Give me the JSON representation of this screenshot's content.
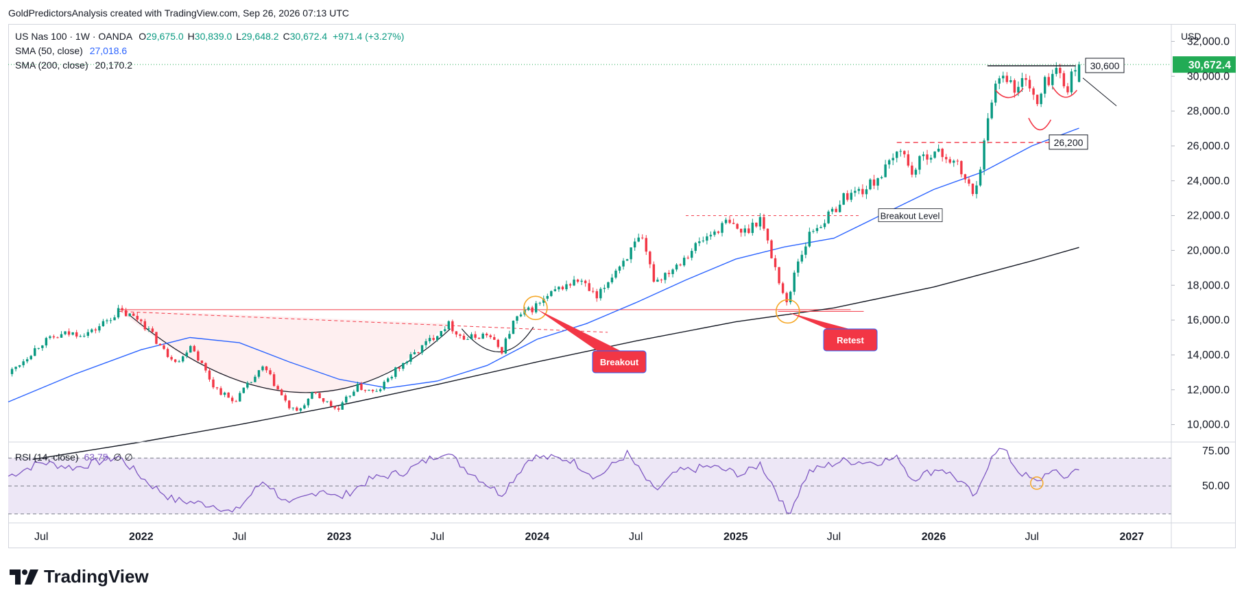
{
  "header": {
    "attribution": "GoldPredictorsAnalysis created with TradingView.com, Sep 26, 2026 07:13 UTC"
  },
  "legend": {
    "symbol": "US Nas 100 · 1W · OANDA",
    "ohlc": [
      {
        "k": "O",
        "v": "29,675.0"
      },
      {
        "k": "H",
        "v": "30,839.0"
      },
      {
        "k": "L",
        "v": "29,648.2"
      },
      {
        "k": "C",
        "v": "30,672.4"
      }
    ],
    "change": "+971.4 (+3.27%)",
    "sma50_label": "SMA (50, close)",
    "sma50_value": "27,018.6",
    "sma200_label": "SMA (200, close)",
    "sma200_value": "20,170.2"
  },
  "rsi_legend": {
    "label": "RSI (14, close)",
    "value": "63.75",
    "extra": "∅ ∅"
  },
  "currency": "USD",
  "price_label": "30,672.4",
  "logo_text": "TradingView",
  "colors": {
    "up": "#089981",
    "down": "#f23645",
    "sma50": "#2962ff",
    "sma200": "#131722",
    "rsi": "#7e57c2",
    "rsi_band": "#ede7f6",
    "annotation_red": "#f23645",
    "orange": "#f5a623",
    "price_tag": "#22ab55"
  },
  "chart_data": {
    "type": "candlestick",
    "timeframe": "1W",
    "x_range": [
      "2021-05-01",
      "2027-03-15"
    ],
    "y_range": [
      9000,
      33000
    ],
    "y_ticks": [
      {
        "value": 10000,
        "label": "10,000.0"
      },
      {
        "value": 12000,
        "label": "12,000.0"
      },
      {
        "value": 14000,
        "label": "14,000.0"
      },
      {
        "value": 16000,
        "label": "16,000.0"
      },
      {
        "value": 18000,
        "label": "18,000.0"
      },
      {
        "value": 20000,
        "label": "20,000.0"
      },
      {
        "value": 22000,
        "label": "22,000.0"
      },
      {
        "value": 24000,
        "label": "24,000.0"
      },
      {
        "value": 26000,
        "label": "26,000.0"
      },
      {
        "value": 28000,
        "label": "28,000.0"
      },
      {
        "value": 30000,
        "label": "30,000.0"
      },
      {
        "value": 32000,
        "label": "32,000.0"
      }
    ],
    "x_ticks": [
      {
        "date": "2021-07-01",
        "label": "Jul",
        "bold": false
      },
      {
        "date": "2022-01-01",
        "label": "2022",
        "bold": true
      },
      {
        "date": "2022-07-01",
        "label": "Jul",
        "bold": false
      },
      {
        "date": "2023-01-01",
        "label": "2023",
        "bold": true
      },
      {
        "date": "2023-07-01",
        "label": "Jul",
        "bold": false
      },
      {
        "date": "2024-01-01",
        "label": "2024",
        "bold": true
      },
      {
        "date": "2024-07-01",
        "label": "Jul",
        "bold": false
      },
      {
        "date": "2025-01-01",
        "label": "2025",
        "bold": true
      },
      {
        "date": "2025-07-01",
        "label": "Jul",
        "bold": false
      },
      {
        "date": "2026-01-01",
        "label": "2026",
        "bold": true
      },
      {
        "date": "2026-07-01",
        "label": "Jul",
        "bold": false
      },
      {
        "date": "2027-01-01",
        "label": "2027",
        "bold": true
      }
    ],
    "close_path": [
      [
        "2021-05-01",
        12900
      ],
      [
        "2021-06-01",
        13800
      ],
      [
        "2021-07-01",
        14700
      ],
      [
        "2021-08-15",
        15200
      ],
      [
        "2021-10-01",
        15300
      ],
      [
        "2021-11-20",
        16500
      ],
      [
        "2022-01-01",
        16000
      ],
      [
        "2022-02-15",
        14100
      ],
      [
        "2022-03-15",
        13600
      ],
      [
        "2022-04-01",
        14700
      ],
      [
        "2022-05-15",
        12200
      ],
      [
        "2022-06-20",
        11300
      ],
      [
        "2022-08-15",
        13300
      ],
      [
        "2022-09-30",
        11000
      ],
      [
        "2022-10-15",
        10700
      ],
      [
        "2022-11-15",
        11800
      ],
      [
        "2022-12-30",
        10800
      ],
      [
        "2023-02-01",
        12200
      ],
      [
        "2023-03-10",
        11800
      ],
      [
        "2023-04-15",
        13100
      ],
      [
        "2023-06-01",
        14400
      ],
      [
        "2023-07-20",
        15800
      ],
      [
        "2023-08-20",
        14900
      ],
      [
        "2023-10-01",
        15200
      ],
      [
        "2023-10-27",
        14200
      ],
      [
        "2023-11-20",
        16000
      ],
      [
        "2023-12-29",
        16800
      ],
      [
        "2024-02-15",
        17900
      ],
      [
        "2024-03-20",
        18300
      ],
      [
        "2024-04-20",
        17200
      ],
      [
        "2024-05-20",
        18700
      ],
      [
        "2024-07-10",
        20700
      ],
      [
        "2024-08-05",
        18200
      ],
      [
        "2024-09-10",
        19100
      ],
      [
        "2024-10-20",
        20300
      ],
      [
        "2024-12-15",
        21600
      ],
      [
        "2025-01-15",
        21000
      ],
      [
        "2025-02-15",
        21900
      ],
      [
        "2025-03-10",
        19500
      ],
      [
        "2025-04-07",
        16700
      ],
      [
        "2025-04-20",
        19000
      ],
      [
        "2025-05-20",
        21100
      ],
      [
        "2025-06-20",
        21900
      ],
      [
        "2025-07-20",
        23100
      ],
      [
        "2025-09-01",
        23600
      ],
      [
        "2025-10-15",
        25000
      ],
      [
        "2025-11-01",
        26000
      ],
      [
        "2025-11-20",
        24400
      ],
      [
        "2025-12-20",
        25600
      ],
      [
        "2026-01-20",
        25500
      ],
      [
        "2026-02-15",
        24800
      ],
      [
        "2026-03-15",
        23200
      ],
      [
        "2026-04-01",
        25500
      ],
      [
        "2026-04-20",
        29200
      ],
      [
        "2026-05-10",
        30400
      ],
      [
        "2026-06-01",
        29000
      ],
      [
        "2026-06-20",
        30100
      ],
      [
        "2026-07-10",
        28200
      ],
      [
        "2026-07-25",
        29600
      ],
      [
        "2026-08-15",
        30400
      ],
      [
        "2026-09-01",
        29300
      ],
      [
        "2026-09-26",
        30672.4
      ]
    ],
    "sma50": [
      [
        "2021-05-01",
        11300
      ],
      [
        "2021-09-01",
        12900
      ],
      [
        "2022-01-01",
        14300
      ],
      [
        "2022-04-01",
        15000
      ],
      [
        "2022-07-01",
        14700
      ],
      [
        "2022-10-01",
        13600
      ],
      [
        "2023-01-01",
        12600
      ],
      [
        "2023-04-01",
        12100
      ],
      [
        "2023-07-01",
        12500
      ],
      [
        "2023-10-01",
        13400
      ],
      [
        "2024-01-01",
        14900
      ],
      [
        "2024-04-01",
        15800
      ],
      [
        "2024-07-01",
        17000
      ],
      [
        "2024-10-01",
        18300
      ],
      [
        "2025-01-01",
        19500
      ],
      [
        "2025-04-01",
        20200
      ],
      [
        "2025-07-01",
        20700
      ],
      [
        "2025-10-01",
        22100
      ],
      [
        "2026-01-01",
        23500
      ],
      [
        "2026-04-01",
        24500
      ],
      [
        "2026-07-01",
        26000
      ],
      [
        "2026-09-26",
        27018.6
      ]
    ],
    "sma200": [
      [
        "2021-06-15",
        8000
      ],
      [
        "2022-01-01",
        9000
      ],
      [
        "2022-07-01",
        10000
      ],
      [
        "2023-01-01",
        11100
      ],
      [
        "2023-07-01",
        12300
      ],
      [
        "2024-01-01",
        13600
      ],
      [
        "2024-07-01",
        14800
      ],
      [
        "2025-01-01",
        15900
      ],
      [
        "2025-07-01",
        16700
      ],
      [
        "2026-01-01",
        17900
      ],
      [
        "2026-07-01",
        19400
      ],
      [
        "2026-09-26",
        20170.2
      ]
    ],
    "rsi": {
      "y_range": [
        25,
        80
      ],
      "ticks": [
        {
          "value": 75,
          "label": "75.00"
        },
        {
          "value": 50,
          "label": "50.00"
        }
      ],
      "levels": [
        70,
        50,
        30
      ],
      "values": [
        [
          "2021-05-01",
          57
        ],
        [
          "2021-07-01",
          67
        ],
        [
          "2021-09-01",
          63
        ],
        [
          "2021-11-20",
          71
        ],
        [
          "2022-01-15",
          52
        ],
        [
          "2022-03-01",
          40
        ],
        [
          "2022-05-20",
          36
        ],
        [
          "2022-06-20",
          30
        ],
        [
          "2022-08-15",
          54
        ],
        [
          "2022-10-01",
          36
        ],
        [
          "2022-12-01",
          48
        ],
        [
          "2023-01-01",
          41
        ],
        [
          "2023-03-01",
          55
        ],
        [
          "2023-05-01",
          60
        ],
        [
          "2023-07-15",
          75
        ],
        [
          "2023-08-20",
          63
        ],
        [
          "2023-10-27",
          44
        ],
        [
          "2023-12-20",
          71
        ],
        [
          "2024-03-01",
          69
        ],
        [
          "2024-04-20",
          56
        ],
        [
          "2024-06-15",
          73
        ],
        [
          "2024-08-05",
          46
        ],
        [
          "2024-09-15",
          60
        ],
        [
          "2024-11-15",
          64
        ],
        [
          "2025-01-15",
          58
        ],
        [
          "2025-02-15",
          66
        ],
        [
          "2025-03-15",
          48
        ],
        [
          "2025-04-07",
          29
        ],
        [
          "2025-05-15",
          60
        ],
        [
          "2025-07-15",
          68
        ],
        [
          "2025-09-15",
          67
        ],
        [
          "2025-10-30",
          70
        ],
        [
          "2025-11-20",
          55
        ],
        [
          "2026-01-15",
          63
        ],
        [
          "2026-02-20",
          53
        ],
        [
          "2026-03-20",
          41
        ],
        [
          "2026-04-20",
          75
        ],
        [
          "2026-05-10",
          76
        ],
        [
          "2026-06-05",
          61
        ],
        [
          "2026-07-10",
          52
        ],
        [
          "2026-08-01",
          61
        ],
        [
          "2026-09-01",
          56
        ],
        [
          "2026-09-26",
          63.75
        ]
      ],
      "highlight": {
        "date": "2026-07-10",
        "value": 52
      }
    },
    "annotations": {
      "resistance_line": {
        "from": "2026-04-10",
        "to": "2026-09-26",
        "value": 30600,
        "label": "30,600"
      },
      "support_line": {
        "from": "2025-10-25",
        "to": "2026-08-25",
        "value": 26200,
        "label": "26,200"
      },
      "breakout_level_line": {
        "from": "2024-10-01",
        "to": "2025-08-20",
        "value": 22000,
        "label": "Breakout Level"
      },
      "neckline": {
        "from": "2021-11-20",
        "to": "2025-08-01",
        "value": 16600
      },
      "breakout_callout": {
        "date": "2023-12-29",
        "value": 16700,
        "label": "Breakout"
      },
      "retest_callout": {
        "date": "2025-04-07",
        "value": 16500,
        "label": "Retest"
      }
    }
  }
}
